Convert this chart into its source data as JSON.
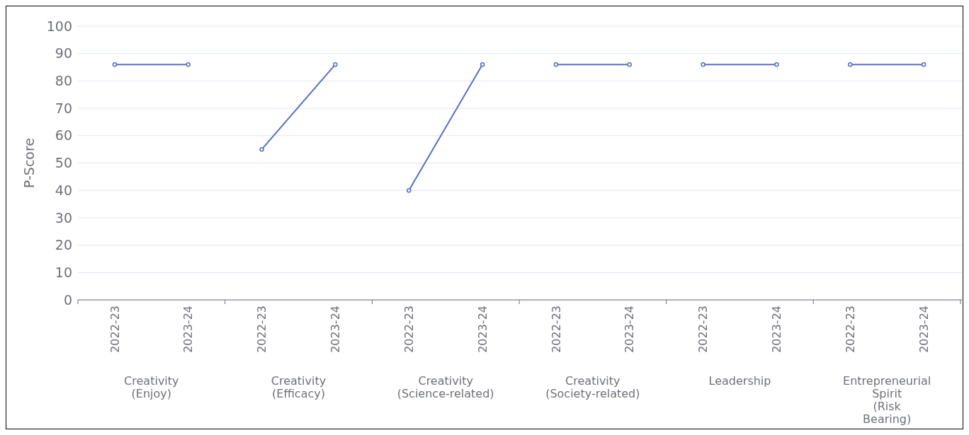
{
  "chart_data": {
    "type": "line",
    "ylabel": "P-Score",
    "categories": [
      "2022-23",
      "2023-24",
      "2022-23",
      "2023-24",
      "2022-23",
      "2023-24",
      "2022-23",
      "2023-24",
      "2022-23",
      "2023-24",
      "2022-23",
      "2023-24"
    ],
    "series": [
      {
        "color": "#5470c6",
        "values": [
          86,
          86,
          null,
          null,
          null,
          null,
          null,
          null,
          null,
          null,
          null,
          null
        ]
      },
      {
        "color": "#5470c6",
        "values": [
          null,
          null,
          55,
          86,
          null,
          null,
          null,
          null,
          null,
          null,
          null,
          null
        ]
      },
      {
        "color": "#5470c6",
        "values": [
          null,
          null,
          null,
          null,
          40,
          86,
          null,
          null,
          null,
          null,
          null,
          null
        ]
      },
      {
        "color": "#5470c6",
        "values": [
          null,
          null,
          null,
          null,
          null,
          null,
          86,
          86,
          null,
          null,
          null,
          null
        ]
      },
      {
        "color": "#5470c6",
        "values": [
          null,
          null,
          null,
          null,
          null,
          null,
          null,
          null,
          86,
          86,
          null,
          null
        ]
      },
      {
        "color": "#5470c6",
        "values": [
          null,
          null,
          null,
          null,
          null,
          null,
          null,
          null,
          null,
          null,
          86,
          86
        ]
      }
    ],
    "annotations": [
      "Creativity (Enjoy)",
      "Creativity (Efficacy)",
      "Creativity (Science-related)",
      "Creativity (Society-related)",
      "Leadership",
      "Entrepreneurial Spirit (Risk Bearing)"
    ],
    "ylim": [
      0,
      100
    ],
    "yticks": [
      0,
      10,
      20,
      30,
      40,
      50,
      60,
      70,
      80,
      90,
      100
    ],
    "grid": true,
    "marker": "circle"
  }
}
